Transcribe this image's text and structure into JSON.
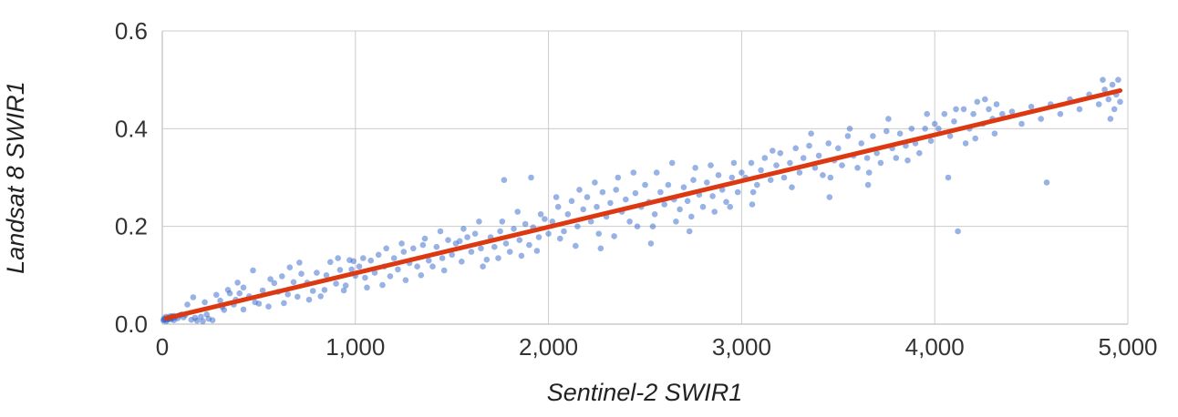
{
  "chart_data": {
    "type": "scatter",
    "title": "",
    "xlabel": "Sentinel-2 SWIR1",
    "ylabel": "Landsat 8 SWIR1",
    "xlim": [
      0,
      5000
    ],
    "ylim": [
      0,
      0.6
    ],
    "grid": true,
    "legend": "none",
    "x_ticks": [
      0,
      1000,
      2000,
      3000,
      4000,
      5000
    ],
    "x_tick_labels": [
      "0",
      "1,000",
      "2,000",
      "3,000",
      "4,000",
      "5,000"
    ],
    "y_ticks": [
      0,
      0.2,
      0.4,
      0.6
    ],
    "y_tick_labels": [
      "0.0",
      "0.2",
      "0.4",
      "0.6"
    ],
    "gridline_color": "#cccccc",
    "baseline_color": "#b0b0b0",
    "series": [
      {
        "name": "observations",
        "type": "scatter",
        "color": "#3366cc",
        "opacity": 0.5,
        "points": [
          [
            5,
            0.008
          ],
          [
            10,
            0.012
          ],
          [
            15,
            0.01
          ],
          [
            20,
            0.015
          ],
          [
            25,
            0.009
          ],
          [
            30,
            0.013
          ],
          [
            35,
            0.011
          ],
          [
            40,
            0.016
          ],
          [
            45,
            0.01
          ],
          [
            50,
            0.014
          ],
          [
            55,
            0.012
          ],
          [
            60,
            0.017
          ],
          [
            20,
            0.006
          ],
          [
            30,
            0.01
          ],
          [
            40,
            0.013
          ],
          [
            10,
            0.009
          ],
          [
            70,
            0.015
          ],
          [
            80,
            0.012
          ],
          [
            90,
            0.018
          ],
          [
            100,
            0.02
          ],
          [
            60,
            0.008
          ],
          [
            50,
            0.016
          ],
          [
            110,
            0.014
          ],
          [
            120,
            0.019
          ],
          [
            150,
            0.009
          ],
          [
            180,
            0.007
          ],
          [
            210,
            0.006
          ],
          [
            240,
            0.011
          ],
          [
            260,
            0.008
          ],
          [
            200,
            0.015
          ],
          [
            230,
            0.02
          ],
          [
            170,
            0.013
          ],
          [
            130,
            0.04
          ],
          [
            160,
            0.055
          ],
          [
            220,
            0.045
          ],
          [
            280,
            0.06
          ],
          [
            310,
            0.035
          ],
          [
            340,
            0.07
          ],
          [
            380,
            0.05
          ],
          [
            420,
            0.075
          ],
          [
            390,
            0.085
          ],
          [
            300,
            0.048
          ],
          [
            320,
            0.029
          ],
          [
            350,
            0.063
          ],
          [
            370,
            0.04
          ],
          [
            400,
            0.063
          ],
          [
            420,
            0.03
          ],
          [
            450,
            0.057
          ],
          [
            470,
            0.11
          ],
          [
            500,
            0.042
          ],
          [
            520,
            0.069
          ],
          [
            550,
            0.036
          ],
          [
            580,
            0.084
          ],
          [
            600,
            0.066
          ],
          [
            620,
            0.098
          ],
          [
            650,
            0.061
          ],
          [
            680,
            0.086
          ],
          [
            700,
            0.056
          ],
          [
            720,
            0.103
          ],
          [
            750,
            0.085
          ],
          [
            780,
            0.068
          ],
          [
            800,
            0.105
          ],
          [
            820,
            0.057
          ],
          [
            850,
            0.1
          ],
          [
            870,
            0.127
          ],
          [
            900,
            0.083
          ],
          [
            920,
            0.111
          ],
          [
            950,
            0.079
          ],
          [
            970,
            0.131
          ],
          [
            1000,
            0.099
          ],
          [
            660,
            0.116
          ],
          [
            760,
            0.05
          ],
          [
            840,
            0.07
          ],
          [
            560,
            0.092
          ],
          [
            480,
            0.045
          ],
          [
            910,
            0.135
          ],
          [
            630,
            0.043
          ],
          [
            710,
            0.126
          ],
          [
            980,
            0.112
          ],
          [
            940,
            0.069
          ],
          [
            990,
            0.129
          ],
          [
            1020,
            0.118
          ],
          [
            1050,
            0.095
          ],
          [
            1080,
            0.13
          ],
          [
            1100,
            0.105
          ],
          [
            1120,
            0.142
          ],
          [
            1150,
            0.118
          ],
          [
            1180,
            0.098
          ],
          [
            1200,
            0.135
          ],
          [
            1220,
            0.112
          ],
          [
            1250,
            0.148
          ],
          [
            1280,
            0.125
          ],
          [
            1300,
            0.155
          ],
          [
            1320,
            0.118
          ],
          [
            1350,
            0.162
          ],
          [
            1380,
            0.13
          ],
          [
            1400,
            0.118
          ],
          [
            1420,
            0.158
          ],
          [
            1450,
            0.135
          ],
          [
            1480,
            0.172
          ],
          [
            1500,
            0.142
          ],
          [
            1520,
            0.165
          ],
          [
            1550,
            0.128
          ],
          [
            1580,
            0.178
          ],
          [
            1600,
            0.148
          ],
          [
            1620,
            0.185
          ],
          [
            1650,
            0.155
          ],
          [
            1680,
            0.132
          ],
          [
            1700,
            0.178
          ],
          [
            1720,
            0.158
          ],
          [
            1750,
            0.19
          ],
          [
            1780,
            0.165
          ],
          [
            1800,
            0.148
          ],
          [
            1820,
            0.195
          ],
          [
            1850,
            0.172
          ],
          [
            1880,
            0.205
          ],
          [
            1900,
            0.162
          ],
          [
            1920,
            0.198
          ],
          [
            1950,
            0.178
          ],
          [
            1980,
            0.215
          ],
          [
            2000,
            0.185
          ],
          [
            1060,
            0.075
          ],
          [
            1160,
            0.155
          ],
          [
            1260,
            0.09
          ],
          [
            1360,
            0.175
          ],
          [
            1460,
            0.11
          ],
          [
            1560,
            0.195
          ],
          [
            1660,
            0.118
          ],
          [
            1760,
            0.21
          ],
          [
            1860,
            0.14
          ],
          [
            1960,
            0.225
          ],
          [
            1040,
            0.135
          ],
          [
            1240,
            0.165
          ],
          [
            1440,
            0.19
          ],
          [
            1640,
            0.21
          ],
          [
            1840,
            0.23
          ],
          [
            1540,
            0.17
          ],
          [
            1340,
            0.1
          ],
          [
            1140,
            0.08
          ],
          [
            1740,
            0.135
          ],
          [
            1940,
            0.15
          ],
          [
            1770,
            0.295
          ],
          [
            1910,
            0.3
          ],
          [
            2020,
            0.21
          ],
          [
            2050,
            0.24
          ],
          [
            2080,
            0.19
          ],
          [
            2100,
            0.225
          ],
          [
            2120,
            0.252
          ],
          [
            2150,
            0.2
          ],
          [
            2180,
            0.235
          ],
          [
            2200,
            0.26
          ],
          [
            2220,
            0.21
          ],
          [
            2250,
            0.24
          ],
          [
            2280,
            0.27
          ],
          [
            2300,
            0.22
          ],
          [
            2320,
            0.248
          ],
          [
            2350,
            0.275
          ],
          [
            2380,
            0.23
          ],
          [
            2400,
            0.255
          ],
          [
            2420,
            0.21
          ],
          [
            2450,
            0.268
          ],
          [
            2480,
            0.24
          ],
          [
            2500,
            0.285
          ],
          [
            2520,
            0.25
          ],
          [
            2550,
            0.225
          ],
          [
            2580,
            0.27
          ],
          [
            2600,
            0.245
          ],
          [
            2620,
            0.285
          ],
          [
            2650,
            0.255
          ],
          [
            2680,
            0.235
          ],
          [
            2700,
            0.28
          ],
          [
            2720,
            0.252
          ],
          [
            2750,
            0.295
          ],
          [
            2780,
            0.265
          ],
          [
            2800,
            0.24
          ],
          [
            2820,
            0.29
          ],
          [
            2850,
            0.262
          ],
          [
            2880,
            0.305
          ],
          [
            2900,
            0.275
          ],
          [
            2920,
            0.25
          ],
          [
            2950,
            0.3
          ],
          [
            2980,
            0.27
          ],
          [
            3000,
            0.31
          ],
          [
            2060,
            0.175
          ],
          [
            2160,
            0.275
          ],
          [
            2260,
            0.185
          ],
          [
            2360,
            0.3
          ],
          [
            2460,
            0.2
          ],
          [
            2560,
            0.31
          ],
          [
            2660,
            0.21
          ],
          [
            2760,
            0.32
          ],
          [
            2860,
            0.23
          ],
          [
            2960,
            0.33
          ],
          [
            2040,
            0.26
          ],
          [
            2240,
            0.29
          ],
          [
            2440,
            0.31
          ],
          [
            2640,
            0.33
          ],
          [
            2840,
            0.325
          ],
          [
            2140,
            0.16
          ],
          [
            2340,
            0.18
          ],
          [
            2540,
            0.2
          ],
          [
            2740,
            0.22
          ],
          [
            2940,
            0.24
          ],
          [
            2530,
            0.165
          ],
          [
            2730,
            0.19
          ],
          [
            2270,
            0.155
          ],
          [
            3020,
            0.3
          ],
          [
            3050,
            0.33
          ],
          [
            3080,
            0.285
          ],
          [
            3100,
            0.315
          ],
          [
            3120,
            0.34
          ],
          [
            3150,
            0.295
          ],
          [
            3180,
            0.325
          ],
          [
            3200,
            0.35
          ],
          [
            3220,
            0.3
          ],
          [
            3250,
            0.33
          ],
          [
            3280,
            0.36
          ],
          [
            3300,
            0.31
          ],
          [
            3320,
            0.34
          ],
          [
            3350,
            0.365
          ],
          [
            3380,
            0.32
          ],
          [
            3400,
            0.345
          ],
          [
            3420,
            0.305
          ],
          [
            3450,
            0.37
          ],
          [
            3480,
            0.335
          ],
          [
            3500,
            0.36
          ],
          [
            3520,
            0.325
          ],
          [
            3550,
            0.385
          ],
          [
            3580,
            0.345
          ],
          [
            3600,
            0.32
          ],
          [
            3620,
            0.37
          ],
          [
            3650,
            0.34
          ],
          [
            3680,
            0.385
          ],
          [
            3700,
            0.35
          ],
          [
            3720,
            0.33
          ],
          [
            3750,
            0.395
          ],
          [
            3780,
            0.36
          ],
          [
            3800,
            0.34
          ],
          [
            3820,
            0.39
          ],
          [
            3850,
            0.365
          ],
          [
            3880,
            0.4
          ],
          [
            3900,
            0.37
          ],
          [
            3920,
            0.35
          ],
          [
            3950,
            0.4
          ],
          [
            3980,
            0.375
          ],
          [
            4000,
            0.41
          ],
          [
            3060,
            0.27
          ],
          [
            3160,
            0.355
          ],
          [
            3260,
            0.28
          ],
          [
            3360,
            0.39
          ],
          [
            3460,
            0.3
          ],
          [
            3560,
            0.4
          ],
          [
            3660,
            0.31
          ],
          [
            3760,
            0.42
          ],
          [
            3860,
            0.335
          ],
          [
            3960,
            0.43
          ],
          [
            3055,
            0.245
          ],
          [
            3455,
            0.26
          ],
          [
            3655,
            0.285
          ],
          [
            4020,
            0.4
          ],
          [
            4050,
            0.43
          ],
          [
            4080,
            0.385
          ],
          [
            4100,
            0.415
          ],
          [
            4120,
            0.19
          ],
          [
            4150,
            0.44
          ],
          [
            4180,
            0.4
          ],
          [
            4200,
            0.43
          ],
          [
            4220,
            0.455
          ],
          [
            4250,
            0.41
          ],
          [
            4280,
            0.44
          ],
          [
            4300,
            0.42
          ],
          [
            4320,
            0.45
          ],
          [
            4350,
            0.43
          ],
          [
            4160,
            0.37
          ],
          [
            4260,
            0.46
          ],
          [
            4400,
            0.435
          ],
          [
            4450,
            0.41
          ],
          [
            4500,
            0.445
          ],
          [
            4550,
            0.42
          ],
          [
            4600,
            0.45
          ],
          [
            4650,
            0.43
          ],
          [
            4700,
            0.46
          ],
          [
            4750,
            0.44
          ],
          [
            4800,
            0.47
          ],
          [
            4850,
            0.45
          ],
          [
            4880,
            0.48
          ],
          [
            4900,
            0.46
          ],
          [
            4920,
            0.49
          ],
          [
            4930,
            0.44
          ],
          [
            4940,
            0.47
          ],
          [
            4950,
            0.5
          ],
          [
            4960,
            0.455
          ],
          [
            4910,
            0.42
          ],
          [
            4870,
            0.5
          ],
          [
            4310,
            0.39
          ],
          [
            4110,
            0.44
          ],
          [
            4210,
            0.38
          ],
          [
            4070,
            0.3
          ],
          [
            4580,
            0.29
          ]
        ]
      },
      {
        "name": "trendline",
        "type": "line",
        "color": "#dc3912",
        "width": 5,
        "points": [
          [
            20,
            0.012
          ],
          [
            4960,
            0.478
          ]
        ]
      }
    ]
  }
}
